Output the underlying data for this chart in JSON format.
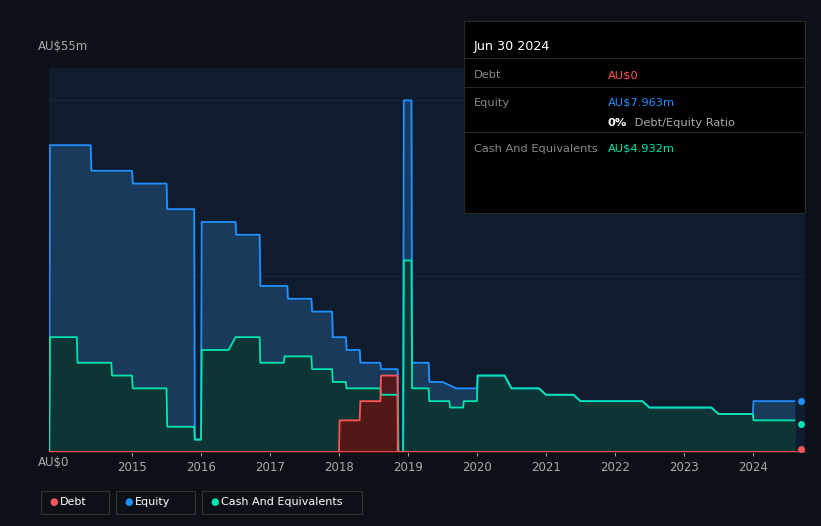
{
  "bg_color": "#0d1117",
  "plot_bg": "#0e1c2e",
  "ylabel_top": "AU$55m",
  "ylabel_bottom": "AU$0",
  "x_ticks": [
    2015,
    2016,
    2017,
    2018,
    2019,
    2020,
    2021,
    2022,
    2023,
    2024
  ],
  "equity_color": "#1e90ff",
  "equity_fill": "#1a3a5c",
  "cash_color": "#00e5b0",
  "cash_fill": "#0d3535",
  "debt_color": "#ff5555",
  "debt_fill": "#5a1515",
  "grid_color": "#1a2a3a",
  "info_box": {
    "date": "Jun 30 2024",
    "debt_label": "Debt",
    "debt_value": "AU$0",
    "equity_label": "Equity",
    "equity_value": "AU$7.963m",
    "ratio_value": "0% Debt/Equity Ratio",
    "cash_label": "Cash And Equivalents",
    "cash_value": "AU$4.932m"
  },
  "equity_x": [
    2013.8,
    2013.81,
    2014.4,
    2014.41,
    2015.0,
    2015.01,
    2015.5,
    2015.51,
    2015.9,
    2015.91,
    2016.0,
    2016.01,
    2016.5,
    2016.51,
    2016.85,
    2016.86,
    2017.25,
    2017.26,
    2017.6,
    2017.61,
    2017.9,
    2017.91,
    2018.1,
    2018.11,
    2018.3,
    2018.31,
    2018.6,
    2018.61,
    2018.85,
    2018.86,
    2018.93,
    2018.94,
    2019.05,
    2019.06,
    2019.3,
    2019.31,
    2019.5,
    2019.7,
    2020.0,
    2020.01,
    2020.4,
    2020.5,
    2020.9,
    2021.0,
    2021.4,
    2021.5,
    2021.9,
    2022.0,
    2022.4,
    2022.5,
    2022.9,
    2023.0,
    2023.4,
    2023.5,
    2024.0,
    2024.01,
    2024.6
  ],
  "equity_y": [
    0,
    48,
    48,
    44,
    44,
    42,
    42,
    38,
    38,
    2,
    2,
    36,
    36,
    34,
    34,
    26,
    26,
    24,
    24,
    22,
    22,
    18,
    18,
    16,
    16,
    14,
    14,
    13,
    13,
    0,
    0,
    55,
    55,
    14,
    14,
    11,
    11,
    10,
    10,
    12,
    12,
    10,
    10,
    9,
    9,
    8,
    8,
    8,
    8,
    7,
    7,
    7,
    7,
    6,
    6,
    8,
    8
  ],
  "cash_x": [
    2013.8,
    2013.81,
    2014.2,
    2014.21,
    2014.7,
    2014.71,
    2015.0,
    2015.01,
    2015.5,
    2015.51,
    2015.9,
    2015.91,
    2016.0,
    2016.01,
    2016.4,
    2016.5,
    2016.85,
    2016.86,
    2017.2,
    2017.21,
    2017.6,
    2017.61,
    2017.9,
    2017.91,
    2018.1,
    2018.11,
    2018.3,
    2018.31,
    2018.6,
    2018.61,
    2018.85,
    2018.86,
    2018.93,
    2018.94,
    2019.05,
    2019.06,
    2019.3,
    2019.31,
    2019.6,
    2019.61,
    2019.8,
    2019.81,
    2020.0,
    2020.01,
    2020.4,
    2020.5,
    2020.9,
    2021.0,
    2021.4,
    2021.5,
    2021.9,
    2022.0,
    2022.4,
    2022.5,
    2022.9,
    2023.0,
    2023.4,
    2023.5,
    2024.0,
    2024.01,
    2024.6
  ],
  "cash_y": [
    0,
    18,
    18,
    14,
    14,
    12,
    12,
    10,
    10,
    4,
    4,
    2,
    2,
    16,
    16,
    18,
    18,
    14,
    14,
    15,
    15,
    13,
    13,
    11,
    11,
    10,
    10,
    10,
    10,
    9,
    9,
    0,
    0,
    30,
    30,
    10,
    10,
    8,
    8,
    7,
    7,
    8,
    8,
    12,
    12,
    10,
    10,
    9,
    9,
    8,
    8,
    8,
    8,
    7,
    7,
    7,
    7,
    6,
    6,
    5,
    5
  ],
  "debt_x": [
    2013.8,
    2017.6,
    2017.61,
    2017.9,
    2017.91,
    2018.0,
    2018.01,
    2018.3,
    2018.31,
    2018.6,
    2018.61,
    2018.85,
    2018.851,
    2018.93,
    2018.94,
    2019.05,
    2019.051,
    2024.6
  ],
  "debt_y": [
    0,
    0,
    0,
    0,
    0,
    0,
    5,
    5,
    8,
    8,
    12,
    12,
    0,
    0,
    0,
    0,
    0,
    0
  ],
  "xlim": [
    2013.8,
    2024.75
  ],
  "ylim": [
    0,
    60
  ]
}
